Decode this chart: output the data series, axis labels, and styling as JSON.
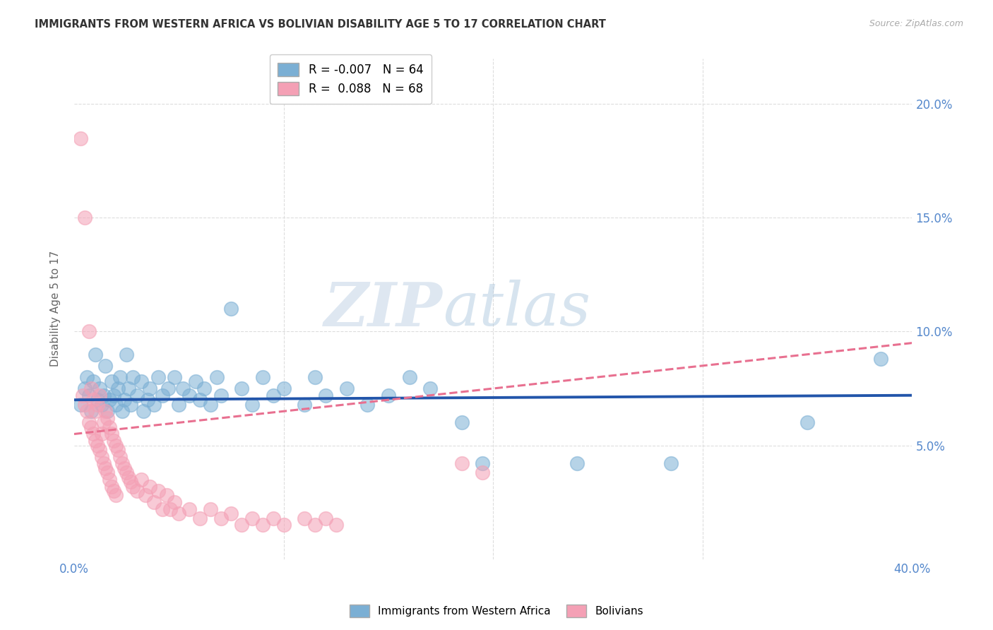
{
  "title": "IMMIGRANTS FROM WESTERN AFRICA VS BOLIVIAN DISABILITY AGE 5 TO 17 CORRELATION CHART",
  "source": "Source: ZipAtlas.com",
  "ylabel": "Disability Age 5 to 17",
  "ylabel_right_ticks": [
    "20.0%",
    "15.0%",
    "10.0%",
    "5.0%"
  ],
  "ylabel_right_vals": [
    0.2,
    0.15,
    0.1,
    0.05
  ],
  "xlim": [
    0.0,
    0.4
  ],
  "ylim": [
    0.0,
    0.22
  ],
  "watermark_zip": "ZIP",
  "watermark_atlas": "atlas",
  "legend_blue_r": "-0.007",
  "legend_blue_n": "64",
  "legend_pink_r": "0.088",
  "legend_pink_n": "68",
  "blue_color": "#7BAFD4",
  "pink_color": "#F4A0B5",
  "trendline_blue_color": "#2255AA",
  "trendline_pink_color": "#E87090",
  "blue_scatter": [
    [
      0.003,
      0.068
    ],
    [
      0.005,
      0.075
    ],
    [
      0.006,
      0.08
    ],
    [
      0.007,
      0.072
    ],
    [
      0.008,
      0.065
    ],
    [
      0.009,
      0.078
    ],
    [
      0.01,
      0.09
    ],
    [
      0.011,
      0.07
    ],
    [
      0.012,
      0.075
    ],
    [
      0.013,
      0.068
    ],
    [
      0.014,
      0.072
    ],
    [
      0.015,
      0.085
    ],
    [
      0.016,
      0.065
    ],
    [
      0.017,
      0.07
    ],
    [
      0.018,
      0.078
    ],
    [
      0.019,
      0.072
    ],
    [
      0.02,
      0.068
    ],
    [
      0.021,
      0.075
    ],
    [
      0.022,
      0.08
    ],
    [
      0.023,
      0.065
    ],
    [
      0.024,
      0.07
    ],
    [
      0.025,
      0.09
    ],
    [
      0.026,
      0.075
    ],
    [
      0.027,
      0.068
    ],
    [
      0.028,
      0.08
    ],
    [
      0.03,
      0.072
    ],
    [
      0.032,
      0.078
    ],
    [
      0.033,
      0.065
    ],
    [
      0.035,
      0.07
    ],
    [
      0.036,
      0.075
    ],
    [
      0.038,
      0.068
    ],
    [
      0.04,
      0.08
    ],
    [
      0.042,
      0.072
    ],
    [
      0.045,
      0.075
    ],
    [
      0.048,
      0.08
    ],
    [
      0.05,
      0.068
    ],
    [
      0.052,
      0.075
    ],
    [
      0.055,
      0.072
    ],
    [
      0.058,
      0.078
    ],
    [
      0.06,
      0.07
    ],
    [
      0.062,
      0.075
    ],
    [
      0.065,
      0.068
    ],
    [
      0.068,
      0.08
    ],
    [
      0.07,
      0.072
    ],
    [
      0.075,
      0.11
    ],
    [
      0.08,
      0.075
    ],
    [
      0.085,
      0.068
    ],
    [
      0.09,
      0.08
    ],
    [
      0.095,
      0.072
    ],
    [
      0.1,
      0.075
    ],
    [
      0.11,
      0.068
    ],
    [
      0.115,
      0.08
    ],
    [
      0.12,
      0.072
    ],
    [
      0.13,
      0.075
    ],
    [
      0.14,
      0.068
    ],
    [
      0.15,
      0.072
    ],
    [
      0.16,
      0.08
    ],
    [
      0.17,
      0.075
    ],
    [
      0.185,
      0.06
    ],
    [
      0.195,
      0.042
    ],
    [
      0.24,
      0.042
    ],
    [
      0.285,
      0.042
    ],
    [
      0.35,
      0.06
    ],
    [
      0.385,
      0.088
    ]
  ],
  "pink_scatter": [
    [
      0.003,
      0.185
    ],
    [
      0.005,
      0.15
    ],
    [
      0.007,
      0.1
    ],
    [
      0.004,
      0.072
    ],
    [
      0.005,
      0.068
    ],
    [
      0.006,
      0.065
    ],
    [
      0.007,
      0.06
    ],
    [
      0.008,
      0.075
    ],
    [
      0.008,
      0.058
    ],
    [
      0.009,
      0.055
    ],
    [
      0.009,
      0.07
    ],
    [
      0.01,
      0.065
    ],
    [
      0.01,
      0.052
    ],
    [
      0.011,
      0.068
    ],
    [
      0.011,
      0.05
    ],
    [
      0.012,
      0.072
    ],
    [
      0.012,
      0.048
    ],
    [
      0.013,
      0.055
    ],
    [
      0.013,
      0.045
    ],
    [
      0.014,
      0.06
    ],
    [
      0.014,
      0.042
    ],
    [
      0.015,
      0.065
    ],
    [
      0.015,
      0.04
    ],
    [
      0.016,
      0.062
    ],
    [
      0.016,
      0.038
    ],
    [
      0.017,
      0.058
    ],
    [
      0.017,
      0.035
    ],
    [
      0.018,
      0.055
    ],
    [
      0.018,
      0.032
    ],
    [
      0.019,
      0.052
    ],
    [
      0.019,
      0.03
    ],
    [
      0.02,
      0.05
    ],
    [
      0.02,
      0.028
    ],
    [
      0.021,
      0.048
    ],
    [
      0.022,
      0.045
    ],
    [
      0.023,
      0.042
    ],
    [
      0.024,
      0.04
    ],
    [
      0.025,
      0.038
    ],
    [
      0.026,
      0.036
    ],
    [
      0.027,
      0.034
    ],
    [
      0.028,
      0.032
    ],
    [
      0.03,
      0.03
    ],
    [
      0.032,
      0.035
    ],
    [
      0.034,
      0.028
    ],
    [
      0.036,
      0.032
    ],
    [
      0.038,
      0.025
    ],
    [
      0.04,
      0.03
    ],
    [
      0.042,
      0.022
    ],
    [
      0.044,
      0.028
    ],
    [
      0.046,
      0.022
    ],
    [
      0.048,
      0.025
    ],
    [
      0.05,
      0.02
    ],
    [
      0.055,
      0.022
    ],
    [
      0.06,
      0.018
    ],
    [
      0.065,
      0.022
    ],
    [
      0.07,
      0.018
    ],
    [
      0.075,
      0.02
    ],
    [
      0.08,
      0.015
    ],
    [
      0.085,
      0.018
    ],
    [
      0.09,
      0.015
    ],
    [
      0.095,
      0.018
    ],
    [
      0.1,
      0.015
    ],
    [
      0.11,
      0.018
    ],
    [
      0.115,
      0.015
    ],
    [
      0.12,
      0.018
    ],
    [
      0.125,
      0.015
    ],
    [
      0.185,
      0.042
    ],
    [
      0.195,
      0.038
    ]
  ],
  "grid_color": "#DDDDDD",
  "background_color": "#FFFFFF",
  "axis_label_color": "#5588CC",
  "title_color": "#333333"
}
